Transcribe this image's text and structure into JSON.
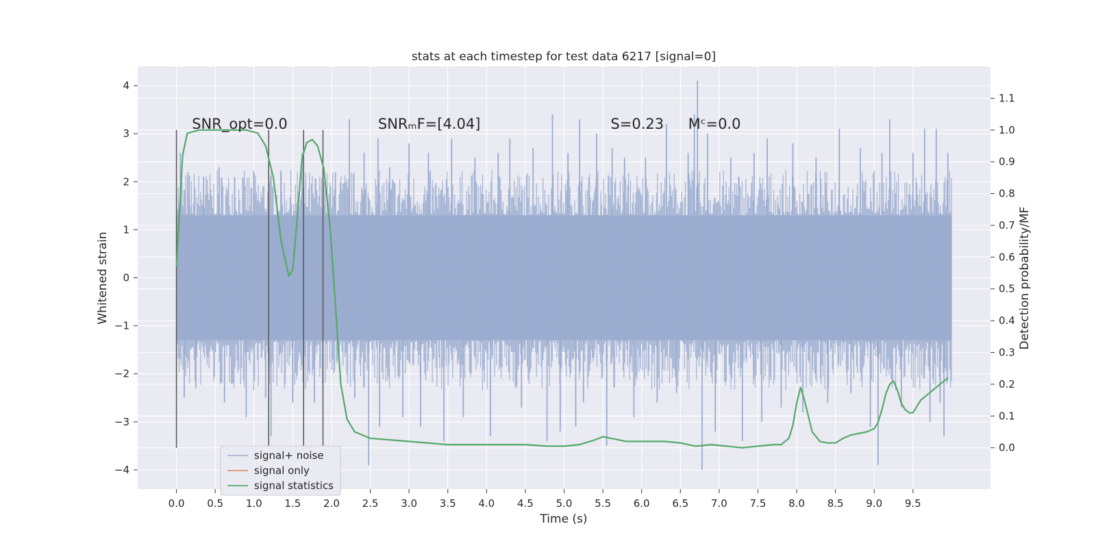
{
  "chart_data": {
    "type": "line",
    "title": "stats at each timestep for test data 6217 [signal=0]",
    "xlabel": "Time (s)",
    "ylabel": "Whitened strain",
    "y2label": "Detection probability/MF",
    "xlim": [
      -0.5,
      10.5
    ],
    "ylim": [
      -4.4,
      4.4
    ],
    "y2lim": [
      -0.13,
      1.2
    ],
    "x_ticks": [
      0.0,
      0.5,
      1.0,
      1.5,
      2.0,
      2.5,
      3.0,
      3.5,
      4.0,
      4.5,
      5.0,
      5.5,
      6.0,
      6.5,
      7.0,
      7.5,
      8.0,
      8.5,
      9.0,
      9.5
    ],
    "x_tick_labels": [
      "0.0",
      "0.5",
      "1.0",
      "1.5",
      "2.0",
      "2.5",
      "3.0",
      "3.5",
      "4.0",
      "4.5",
      "5.0",
      "5.5",
      "6.0",
      "6.5",
      "7.0",
      "7.5",
      "8.0",
      "8.5",
      "9.0",
      "9.5"
    ],
    "y_ticks": [
      4,
      3,
      2,
      1,
      0,
      -1,
      -2,
      -3,
      -4
    ],
    "y_tick_labels": [
      "4",
      "3",
      "2",
      "1",
      "0",
      "−1",
      "−2",
      "−3",
      "−4"
    ],
    "y2_ticks": [
      1.1,
      1.0,
      0.9,
      0.8,
      0.7,
      0.6,
      0.5,
      0.4,
      0.3,
      0.2,
      0.1,
      0.0
    ],
    "y2_tick_labels": [
      "1.1",
      "1.0",
      "0.9",
      "0.8",
      "0.7",
      "0.6",
      "0.5",
      "0.4",
      "0.3",
      "0.2",
      "0.1",
      "0.0"
    ],
    "grid": true,
    "legend_position": "lower-left",
    "annotations": [
      {
        "text": "SNR_opt=0.0",
        "x": 0.2
      },
      {
        "text": "SNRₘF=[4.04]",
        "x": 2.6
      },
      {
        "text": "S=0.23",
        "x": 5.6
      },
      {
        "text": "Mᶜ=0.0",
        "x": 6.6
      }
    ],
    "annotation_y": 3.2,
    "vertical_markers": [
      0.0,
      1.19,
      1.64,
      1.89
    ],
    "series": [
      {
        "name": "signal+ noise",
        "color": "#9aaccf",
        "kind": "noise",
        "x_range": [
          0.0,
          10.0
        ],
        "envelope": [
          -1.3,
          1.3
        ],
        "spikes": [
          [
            0.05,
            2.6
          ],
          [
            0.1,
            -2.5
          ],
          [
            0.15,
            2.2
          ],
          [
            0.25,
            -2.3
          ],
          [
            0.35,
            2.1
          ],
          [
            0.55,
            2.3
          ],
          [
            0.62,
            -2.6
          ],
          [
            0.75,
            2.1
          ],
          [
            0.9,
            -2.9
          ],
          [
            1.0,
            2.2
          ],
          [
            1.15,
            -2.5
          ],
          [
            1.22,
            -3.3
          ],
          [
            1.35,
            2.2
          ],
          [
            1.5,
            -2.6
          ],
          [
            1.62,
            2.6
          ],
          [
            1.78,
            -2.6
          ],
          [
            1.9,
            2.0
          ],
          [
            2.05,
            2.2
          ],
          [
            2.23,
            3.3
          ],
          [
            2.3,
            -2.5
          ],
          [
            2.42,
            2.6
          ],
          [
            2.48,
            -3.9
          ],
          [
            2.6,
            2.9
          ],
          [
            2.62,
            -3.1
          ],
          [
            2.75,
            2.3
          ],
          [
            2.92,
            -2.9
          ],
          [
            3.0,
            2.8
          ],
          [
            3.15,
            -3.1
          ],
          [
            3.25,
            2.6
          ],
          [
            3.45,
            -3.4
          ],
          [
            3.55,
            2.9
          ],
          [
            3.7,
            -2.9
          ],
          [
            3.85,
            2.5
          ],
          [
            4.05,
            -3.3
          ],
          [
            4.15,
            2.6
          ],
          [
            4.3,
            2.9
          ],
          [
            4.45,
            -2.7
          ],
          [
            4.6,
            2.7
          ],
          [
            4.78,
            -3.4
          ],
          [
            4.85,
            3.4
          ],
          [
            4.95,
            -3.2
          ],
          [
            5.05,
            2.6
          ],
          [
            5.15,
            -3.1
          ],
          [
            5.2,
            3.3
          ],
          [
            5.25,
            -2.6
          ],
          [
            5.42,
            3.0
          ],
          [
            5.55,
            -3.5
          ],
          [
            5.62,
            2.7
          ],
          [
            5.78,
            2.5
          ],
          [
            5.9,
            -2.9
          ],
          [
            6.05,
            2.5
          ],
          [
            6.2,
            -2.6
          ],
          [
            6.32,
            3.2
          ],
          [
            6.45,
            -2.4
          ],
          [
            6.6,
            2.6
          ],
          [
            6.68,
            3.4
          ],
          [
            6.72,
            4.1
          ],
          [
            6.78,
            -4.0
          ],
          [
            6.85,
            3.0
          ],
          [
            6.95,
            -3.2
          ],
          [
            7.15,
            2.5
          ],
          [
            7.3,
            -3.4
          ],
          [
            7.45,
            2.6
          ],
          [
            7.55,
            -3.0
          ],
          [
            7.62,
            2.9
          ],
          [
            7.8,
            -2.7
          ],
          [
            7.95,
            2.8
          ],
          [
            8.08,
            -2.8
          ],
          [
            8.25,
            2.5
          ],
          [
            8.4,
            -2.6
          ],
          [
            8.55,
            3.1
          ],
          [
            8.7,
            -2.4
          ],
          [
            8.82,
            2.7
          ],
          [
            8.95,
            -3.1
          ],
          [
            9.05,
            -3.9
          ],
          [
            9.1,
            2.6
          ],
          [
            9.2,
            3.3
          ],
          [
            9.35,
            -2.7
          ],
          [
            9.5,
            2.6
          ],
          [
            9.65,
            3.1
          ],
          [
            9.72,
            -3.0
          ],
          [
            9.8,
            3.1
          ],
          [
            9.85,
            -2.6
          ],
          [
            9.9,
            -3.3
          ],
          [
            9.95,
            2.6
          ]
        ]
      },
      {
        "name": "signal only",
        "color": "#dd8452",
        "kind": "line",
        "x": [],
        "y": []
      },
      {
        "name": "signal statistics",
        "color": "#55a868",
        "kind": "line",
        "axis": "right",
        "x": [
          0.0,
          0.08,
          0.14,
          0.3,
          0.6,
          0.9,
          1.05,
          1.15,
          1.25,
          1.35,
          1.45,
          1.5,
          1.55,
          1.62,
          1.68,
          1.75,
          1.82,
          1.9,
          1.98,
          2.05,
          2.12,
          2.2,
          2.3,
          2.5,
          3.0,
          3.5,
          4.0,
          4.5,
          4.8,
          5.0,
          5.2,
          5.4,
          5.5,
          5.6,
          5.7,
          5.8,
          6.0,
          6.2,
          6.3,
          6.5,
          6.7,
          6.9,
          7.1,
          7.3,
          7.5,
          7.7,
          7.8,
          7.9,
          7.95,
          8.0,
          8.05,
          8.1,
          8.15,
          8.2,
          8.3,
          8.4,
          8.5,
          8.6,
          8.7,
          8.8,
          8.9,
          9.0,
          9.05,
          9.1,
          9.15,
          9.2,
          9.25,
          9.3,
          9.35,
          9.4,
          9.45,
          9.5,
          9.55,
          9.6,
          9.7,
          9.8,
          9.85,
          9.9,
          9.95
        ],
        "y": [
          0.57,
          0.92,
          0.99,
          1.0,
          1.0,
          1.0,
          0.99,
          0.95,
          0.85,
          0.65,
          0.54,
          0.56,
          0.7,
          0.91,
          0.96,
          0.97,
          0.95,
          0.88,
          0.7,
          0.45,
          0.2,
          0.09,
          0.05,
          0.03,
          0.02,
          0.01,
          0.01,
          0.01,
          0.005,
          0.005,
          0.01,
          0.025,
          0.035,
          0.03,
          0.025,
          0.02,
          0.02,
          0.02,
          0.02,
          0.015,
          0.005,
          0.01,
          0.005,
          0.0,
          0.005,
          0.01,
          0.01,
          0.03,
          0.07,
          0.14,
          0.19,
          0.15,
          0.1,
          0.05,
          0.02,
          0.015,
          0.015,
          0.03,
          0.04,
          0.045,
          0.05,
          0.06,
          0.08,
          0.12,
          0.17,
          0.2,
          0.21,
          0.18,
          0.14,
          0.12,
          0.11,
          0.11,
          0.13,
          0.15,
          0.17,
          0.19,
          0.2,
          0.21,
          0.22
        ]
      }
    ]
  }
}
